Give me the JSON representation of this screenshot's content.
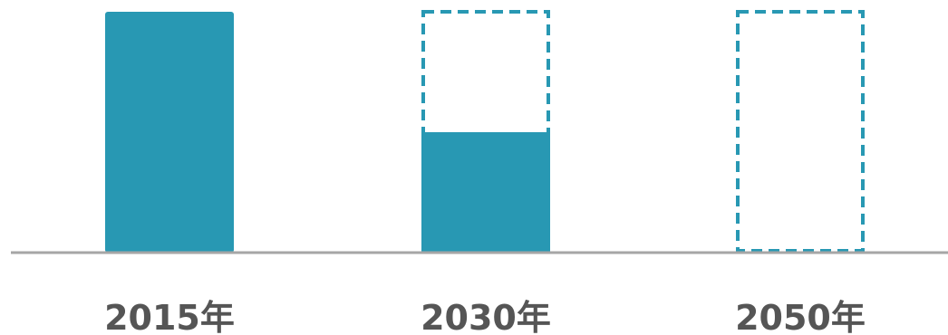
{
  "chart_data": {
    "type": "bar",
    "categories": [
      "2015年",
      "2030年",
      "2050年"
    ],
    "values": [
      100,
      50,
      0
    ],
    "reference": 100,
    "ylim": [
      0,
      100
    ],
    "grid": false,
    "legend": "none",
    "colors": {
      "bar": "#2898b3",
      "reference_outline": "#2898b3",
      "axis": "#a6a6a6",
      "label": "#555555"
    }
  }
}
